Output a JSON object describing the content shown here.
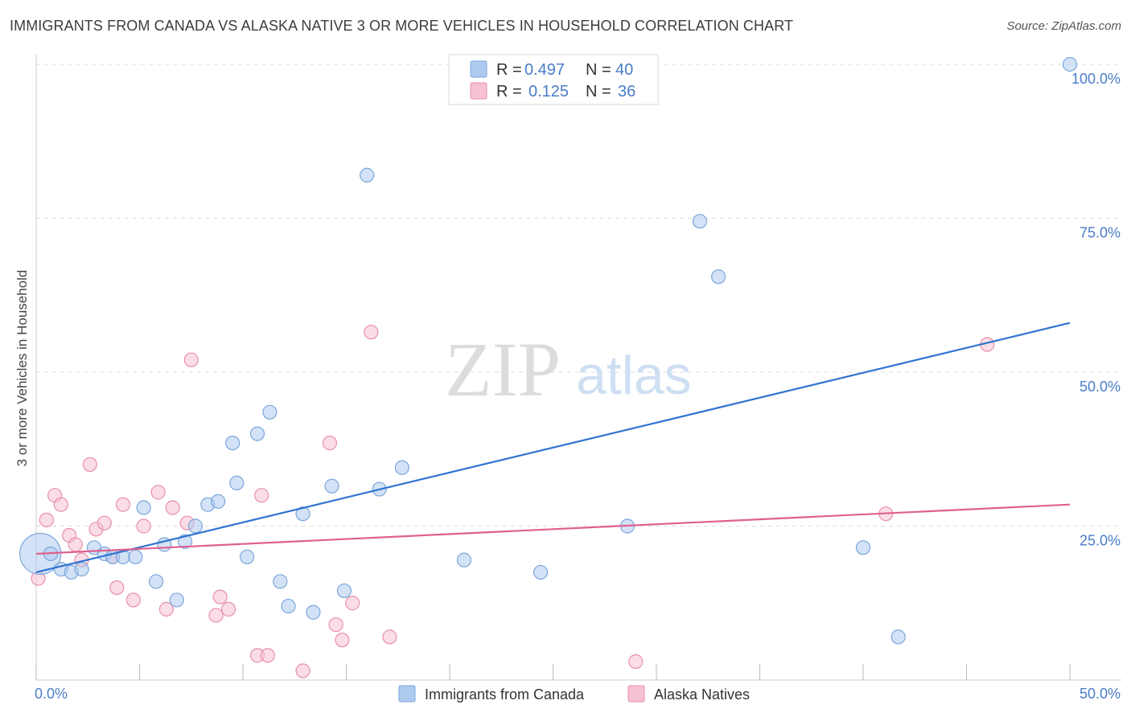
{
  "title": "IMMIGRANTS FROM CANADA VS ALASKA NATIVE 3 OR MORE VEHICLES IN HOUSEHOLD CORRELATION CHART",
  "source": "Source: ZipAtlas.com",
  "watermark": {
    "zip": "ZIP",
    "atlas": "atlas"
  },
  "colors": {
    "blue_fill": "#aecbef",
    "blue_stroke": "#7ba6dc",
    "blue_line": "#2f74d0",
    "pink_fill": "#f6c1d1",
    "pink_stroke": "#e98fab",
    "pink_line": "#e0608e",
    "tick_text": "#4a7cc9"
  },
  "legend": {
    "r_label": "R = ",
    "n_label": "N = ",
    "series": [
      {
        "r": "0.497",
        "n": "40"
      },
      {
        "r": "0.125",
        "n": "36"
      }
    ]
  },
  "chart_data": {
    "type": "scatter",
    "xlabel": "",
    "ylabel": "3 or more Vehicles in Household",
    "xlim": [
      0,
      50
    ],
    "ylim": [
      0,
      105
    ],
    "x_tick_labels": [
      "0.0%",
      "50.0%"
    ],
    "y_ticks": [
      25,
      50,
      75,
      100
    ],
    "y_tick_labels": [
      "25.0%",
      "50.0%",
      "75.0%",
      "100.0%"
    ],
    "grid": true,
    "series": [
      {
        "name": "Immigrants from Canada",
        "trend": {
          "x": [
            0,
            50
          ],
          "y": [
            17.5,
            58.0
          ]
        },
        "points": [
          {
            "x": 0.2,
            "y": 20.5,
            "s": 3
          },
          {
            "x": 0.7,
            "y": 20.5,
            "s": 1
          },
          {
            "x": 1.2,
            "y": 18.0,
            "s": 1
          },
          {
            "x": 1.7,
            "y": 17.5,
            "s": 1
          },
          {
            "x": 2.2,
            "y": 18.0,
            "s": 1
          },
          {
            "x": 2.8,
            "y": 21.5,
            "s": 1
          },
          {
            "x": 3.3,
            "y": 20.5,
            "s": 1
          },
          {
            "x": 3.7,
            "y": 20.0,
            "s": 1
          },
          {
            "x": 4.2,
            "y": 20.0,
            "s": 1
          },
          {
            "x": 4.8,
            "y": 20.0,
            "s": 1
          },
          {
            "x": 5.2,
            "y": 28.0,
            "s": 1
          },
          {
            "x": 5.8,
            "y": 16.0,
            "s": 1
          },
          {
            "x": 6.2,
            "y": 22.0,
            "s": 1
          },
          {
            "x": 6.8,
            "y": 13.0,
            "s": 1
          },
          {
            "x": 7.2,
            "y": 22.5,
            "s": 1
          },
          {
            "x": 7.7,
            "y": 25.0,
            "s": 1
          },
          {
            "x": 8.3,
            "y": 28.5,
            "s": 1
          },
          {
            "x": 8.8,
            "y": 29.0,
            "s": 1
          },
          {
            "x": 9.5,
            "y": 38.5,
            "s": 1
          },
          {
            "x": 9.7,
            "y": 32.0,
            "s": 1
          },
          {
            "x": 10.2,
            "y": 20.0,
            "s": 1
          },
          {
            "x": 10.7,
            "y": 40.0,
            "s": 1
          },
          {
            "x": 11.3,
            "y": 43.5,
            "s": 1
          },
          {
            "x": 11.8,
            "y": 16.0,
            "s": 1
          },
          {
            "x": 12.2,
            "y": 12.0,
            "s": 1
          },
          {
            "x": 12.9,
            "y": 27.0,
            "s": 1
          },
          {
            "x": 13.4,
            "y": 11.0,
            "s": 1
          },
          {
            "x": 14.3,
            "y": 31.5,
            "s": 1
          },
          {
            "x": 14.9,
            "y": 14.5,
            "s": 1
          },
          {
            "x": 16.0,
            "y": 82.0,
            "s": 1
          },
          {
            "x": 16.6,
            "y": 31.0,
            "s": 1
          },
          {
            "x": 17.7,
            "y": 34.5,
            "s": 1
          },
          {
            "x": 20.7,
            "y": 19.5,
            "s": 1
          },
          {
            "x": 24.4,
            "y": 17.5,
            "s": 1
          },
          {
            "x": 28.6,
            "y": 25.0,
            "s": 1
          },
          {
            "x": 32.1,
            "y": 74.5,
            "s": 1
          },
          {
            "x": 33.0,
            "y": 65.5,
            "s": 1
          },
          {
            "x": 40.0,
            "y": 21.5,
            "s": 1
          },
          {
            "x": 41.7,
            "y": 7.0,
            "s": 1
          },
          {
            "x": 50.0,
            "y": 100.0,
            "s": 1
          }
        ]
      },
      {
        "name": "Alaska Natives",
        "trend": {
          "x": [
            0,
            50
          ],
          "y": [
            20.5,
            28.5
          ]
        },
        "points": [
          {
            "x": 0.1,
            "y": 16.5,
            "s": 1
          },
          {
            "x": 0.5,
            "y": 26.0,
            "s": 1
          },
          {
            "x": 0.9,
            "y": 30.0,
            "s": 1
          },
          {
            "x": 1.2,
            "y": 28.5,
            "s": 1
          },
          {
            "x": 1.6,
            "y": 23.5,
            "s": 1
          },
          {
            "x": 1.9,
            "y": 22.0,
            "s": 1
          },
          {
            "x": 2.2,
            "y": 19.5,
            "s": 1
          },
          {
            "x": 2.6,
            "y": 35.0,
            "s": 1
          },
          {
            "x": 2.9,
            "y": 24.5,
            "s": 1
          },
          {
            "x": 3.3,
            "y": 25.5,
            "s": 1
          },
          {
            "x": 3.7,
            "y": 20.0,
            "s": 1
          },
          {
            "x": 3.9,
            "y": 15.0,
            "s": 1
          },
          {
            "x": 4.2,
            "y": 28.5,
            "s": 1
          },
          {
            "x": 4.7,
            "y": 13.0,
            "s": 1
          },
          {
            "x": 5.2,
            "y": 25.0,
            "s": 1
          },
          {
            "x": 5.9,
            "y": 30.5,
            "s": 1
          },
          {
            "x": 6.3,
            "y": 11.5,
            "s": 1
          },
          {
            "x": 6.6,
            "y": 28.0,
            "s": 1
          },
          {
            "x": 7.3,
            "y": 25.5,
            "s": 1
          },
          {
            "x": 7.5,
            "y": 52.0,
            "s": 1
          },
          {
            "x": 8.7,
            "y": 10.5,
            "s": 1
          },
          {
            "x": 8.9,
            "y": 13.5,
            "s": 1
          },
          {
            "x": 9.3,
            "y": 11.5,
            "s": 1
          },
          {
            "x": 10.7,
            "y": 4.0,
            "s": 1
          },
          {
            "x": 10.9,
            "y": 30.0,
            "s": 1
          },
          {
            "x": 11.2,
            "y": 4.0,
            "s": 1
          },
          {
            "x": 12.9,
            "y": 1.5,
            "s": 1
          },
          {
            "x": 14.2,
            "y": 38.5,
            "s": 1
          },
          {
            "x": 14.5,
            "y": 9.0,
            "s": 1
          },
          {
            "x": 14.8,
            "y": 6.5,
            "s": 1
          },
          {
            "x": 15.3,
            "y": 12.5,
            "s": 1
          },
          {
            "x": 16.2,
            "y": 56.5,
            "s": 1
          },
          {
            "x": 17.1,
            "y": 7.0,
            "s": 1
          },
          {
            "x": 29.0,
            "y": 3.0,
            "s": 1
          },
          {
            "x": 41.1,
            "y": 27.0,
            "s": 1
          },
          {
            "x": 46.0,
            "y": 54.5,
            "s": 1
          }
        ]
      }
    ]
  }
}
